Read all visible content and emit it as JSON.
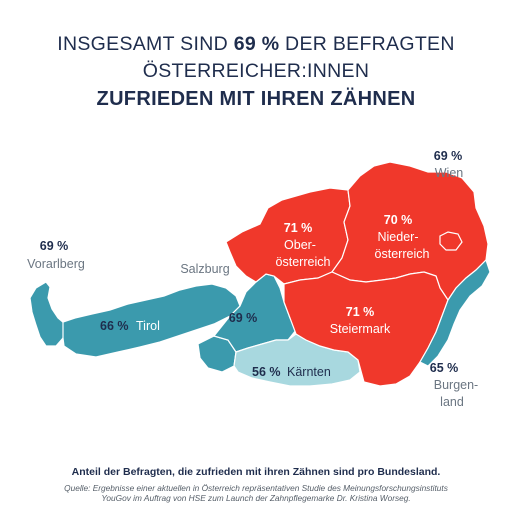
{
  "title": {
    "line1_prefix": "INSGESAMT SIND ",
    "line1_highlight": "69 %",
    "line1_suffix": " DER BEFRAGTEN",
    "line2": "ÖSTERREICHER:INNEN",
    "line3": "ZUFRIEDEN MIT IHREN ZÄHNEN"
  },
  "regions": {
    "wien": {
      "percent": "69 %",
      "name": "Wien",
      "color": "#f0382b"
    },
    "niederoesterreich": {
      "percent": "70 %",
      "name_line1": "Nieder-",
      "name_line2": "österreich",
      "color": "#f0382b"
    },
    "oberoesterreich": {
      "percent": "71 %",
      "name_line1": "Ober-",
      "name_line2": "österreich",
      "color": "#f0382b"
    },
    "steiermark": {
      "percent": "71 %",
      "name": "Steiermark",
      "color": "#f0382b"
    },
    "vorarlberg": {
      "percent": "69 %",
      "name": "Vorarlberg",
      "color": "#3b9aad"
    },
    "tirol": {
      "percent": "66 %",
      "name": "Tirol",
      "color": "#3b9aad"
    },
    "salzburg": {
      "percent": "69 %",
      "name": "Salzburg",
      "color": "#3b9aad"
    },
    "kaernten": {
      "percent": "56 %",
      "name": "Kärnten",
      "color": "#a8d8df"
    },
    "burgenland": {
      "percent": "65 %",
      "name_line1": "Burgen-",
      "name_line2": "land",
      "color": "#3b9aad"
    }
  },
  "footer": {
    "main": "Anteil der Befragten, die zufrieden mit ihren Zähnen sind pro Bundesland.",
    "source_line1": "Quelle: Ergebnisse einer aktuellen in Österreich repräsentativen Studie des Meinungsforschungsinstituts",
    "source_line2": "YouGov im Auftrag von HSE zum Launch der Zahnpflegemarke Dr. Kristina Worseg."
  }
}
